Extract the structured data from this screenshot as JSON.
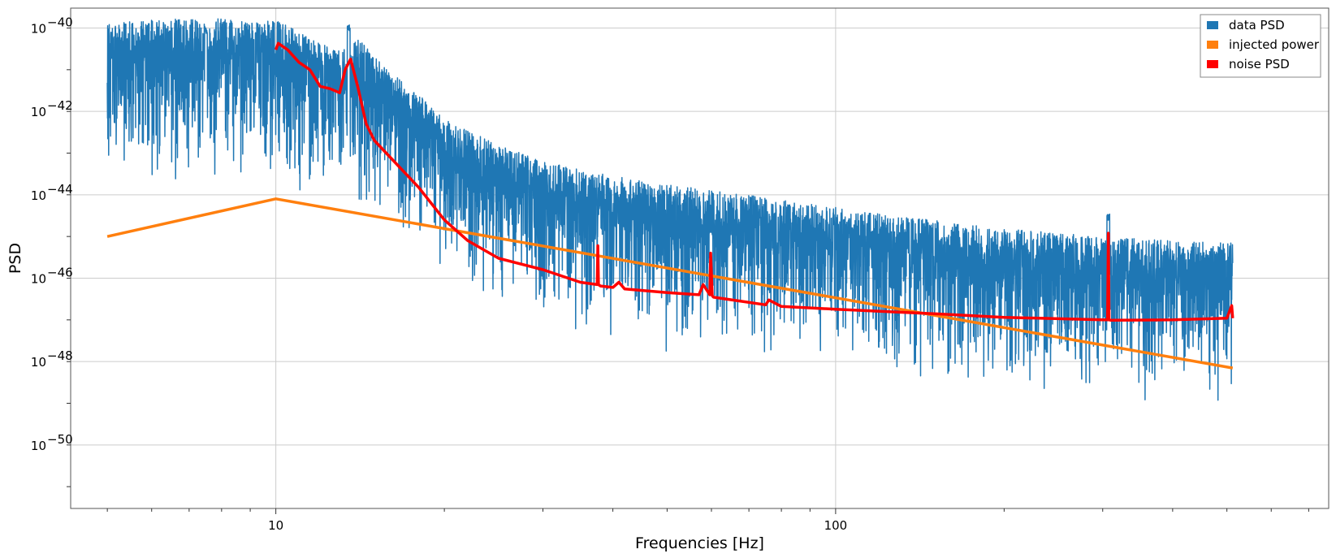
{
  "chart_data": {
    "type": "line",
    "xlabel": "Frequencies [Hz]",
    "ylabel": "PSD",
    "xscale": "log",
    "yscale": "log",
    "xlim": [
      4.3,
      760
    ],
    "ylim": [
      3e-52,
      3e-40
    ],
    "grid": true,
    "legend_position": "top-right",
    "x_ticks": [
      {
        "value": 10,
        "label": "10"
      },
      {
        "value": 100,
        "label": "100"
      }
    ],
    "y_ticks": [
      {
        "value": 1e-40,
        "base": "10",
        "exp": "−40"
      },
      {
        "value": 1e-42,
        "base": "10",
        "exp": "−42"
      },
      {
        "value": 1e-44,
        "base": "10",
        "exp": "−44"
      },
      {
        "value": 1e-46,
        "base": "10",
        "exp": "−46"
      },
      {
        "value": 1e-48,
        "base": "10",
        "exp": "−48"
      },
      {
        "value": 1e-50,
        "base": "10",
        "exp": "−50"
      }
    ],
    "series": [
      {
        "name": "data PSD",
        "color": "#1f77b4",
        "style": "noisy",
        "centerline": {
          "x": [
            5,
            6,
            7,
            8,
            9,
            10,
            11,
            12,
            13,
            14,
            15,
            16,
            18,
            20,
            25,
            30,
            40,
            50,
            60,
            80,
            100,
            150,
            200,
            300,
            400,
            512
          ],
          "y": [
            2e-41,
            2.2e-41,
            2.4e-41,
            2.4e-41,
            2.3e-41,
            2.2e-41,
            1.2e-41,
            6e-42,
            4e-42,
            8e-42,
            3e-42,
            1.2e-42,
            4e-43,
            9e-44,
            2.2e-44,
            9e-45,
            4e-45,
            2.5e-45,
            1.8e-45,
            1.1e-45,
            7e-46,
            3.5e-46,
            2.2e-46,
            1.4e-46,
            1.1e-46,
            1e-46
          ]
        },
        "peaks": [
          {
            "x": 7.5,
            "y": 1e-40
          },
          {
            "x": 13.5,
            "y": 1.2e-40
          },
          {
            "x": 60,
            "y": 1.5e-45
          },
          {
            "x": 307,
            "y": 3.5e-45
          }
        ]
      },
      {
        "name": "injected power",
        "color": "#ff7f0e",
        "x": [
          5,
          10,
          512
        ],
        "y": [
          1e-45,
          8e-45,
          7e-49
        ]
      },
      {
        "name": "noise PSD",
        "color": "#ff0000",
        "x": [
          10,
          10.1,
          10.5,
          11,
          11.5,
          12,
          12.5,
          13,
          13.3,
          13.6,
          14,
          14.5,
          15,
          16,
          18,
          20,
          22,
          25,
          30,
          35,
          37.5,
          37.6,
          37.7,
          38,
          40,
          41,
          42,
          50,
          57,
          58,
          59.6,
          59.8,
          60.2,
          60.5,
          75,
          76,
          80,
          100,
          150,
          200,
          300,
          306,
          307,
          308,
          310,
          400,
          500,
          510,
          512
        ],
        "y": [
          3e-41,
          4.3e-41,
          3e-41,
          1.5e-41,
          1e-41,
          4e-42,
          3.5e-42,
          2.8e-42,
          1e-41,
          1.8e-41,
          4e-42,
          5e-43,
          2e-43,
          8e-44,
          1.5e-44,
          2.5e-45,
          8e-46,
          3e-46,
          1.6e-46,
          8e-47,
          7e-47,
          6e-46,
          7e-47,
          6.5e-47,
          6e-47,
          8e-47,
          5.5e-47,
          4.5e-47,
          4e-47,
          7e-47,
          4e-47,
          4e-46,
          3.8e-47,
          3.5e-47,
          2.3e-47,
          3e-47,
          2.1e-47,
          1.8e-47,
          1.4e-47,
          1.15e-47,
          1e-47,
          1e-47,
          1.2e-45,
          1e-47,
          9.8e-48,
          1e-47,
          1.1e-47,
          2.2e-47,
          1.1e-47
        ]
      }
    ]
  }
}
